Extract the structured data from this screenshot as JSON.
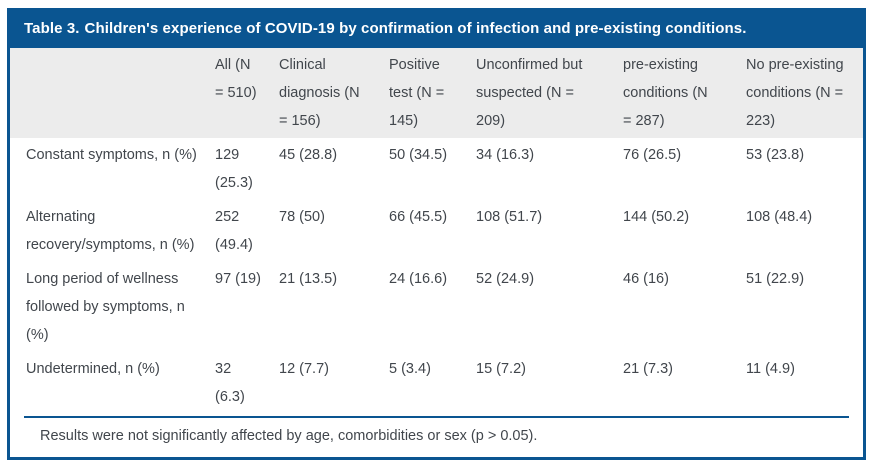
{
  "title": {
    "label": "Table 3.",
    "text": "Children's experience of COVID-19 by confirmation of infection and pre-existing conditions."
  },
  "colors": {
    "accent_blue": "#0a5591",
    "header_gray": "#ececec",
    "body_text": "#41464c",
    "title_text": "#ffffff"
  },
  "table": {
    "columns": [
      "",
      "All (N\n= 510)",
      "Clinical\ndiagnosis (N\n= 156)",
      "Positive\ntest (N =\n145)",
      "Unconfirmed but\nsuspected (N =\n209)",
      "pre-existing\nconditions (N\n= 287)",
      "No pre-existing\nconditions (N =\n223)"
    ],
    "rows": [
      {
        "label": "Constant symptoms, n (%)",
        "values": [
          "129\n(25.3)",
          "45 (28.8)",
          "50 (34.5)",
          "34 (16.3)",
          "76 (26.5)",
          "53 (23.8)"
        ]
      },
      {
        "label": "Alternating\nrecovery/symptoms, n (%)",
        "values": [
          "252\n(49.4)",
          "78 (50)",
          "66 (45.5)",
          "108 (51.7)",
          "144 (50.2)",
          "108 (48.4)"
        ]
      },
      {
        "label": "Long period of wellness\nfollowed by symptoms, n\n(%)",
        "values": [
          "97 (19)",
          "21 (13.5)",
          "24 (16.6)",
          "52 (24.9)",
          "46 (16)",
          "51 (22.9)"
        ]
      },
      {
        "label": "Undetermined, n (%)",
        "values": [
          "32\n(6.3)",
          "12 (7.7)",
          "5 (3.4)",
          "15 (7.2)",
          "21 (7.3)",
          "11 (4.9)"
        ]
      }
    ],
    "footnote": "Results were not significantly affected by age, comorbidities or sex (p > 0.05)."
  }
}
